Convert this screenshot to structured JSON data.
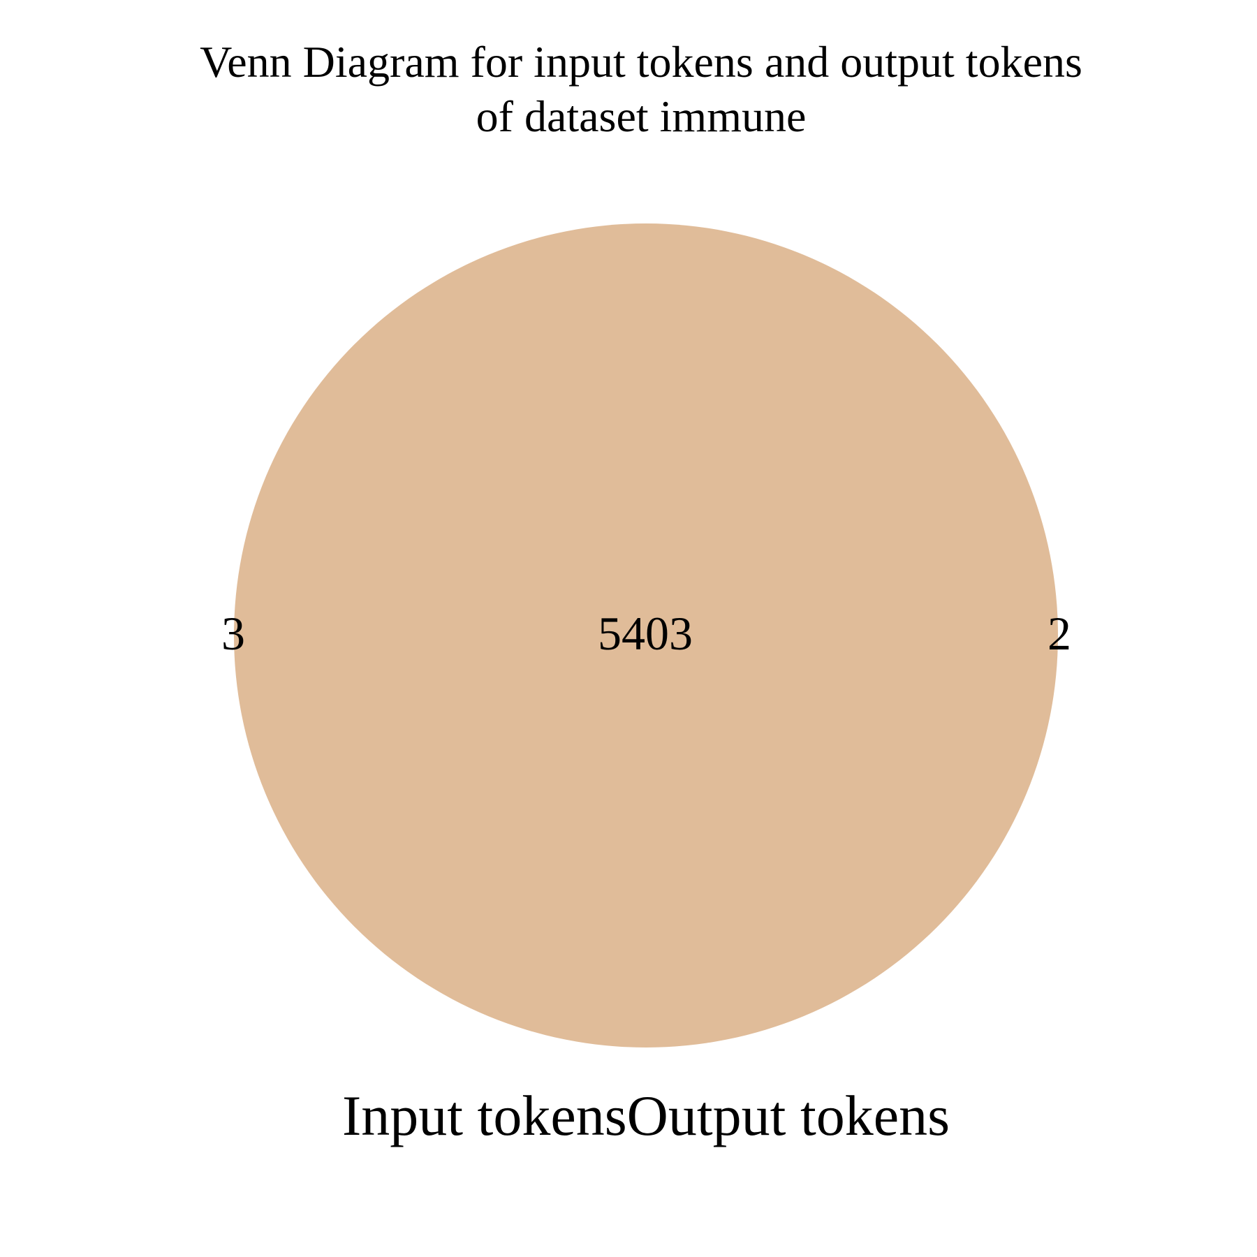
{
  "diagram": {
    "title_line_1": "Venn Diagram for input tokens and output tokens",
    "title_line_2": "of dataset immune",
    "fill_color": "#e0bc99",
    "sets": [
      {
        "label": "Input tokens",
        "only_count": "3"
      },
      {
        "label": "Output tokens",
        "only_count": "2"
      }
    ],
    "intersection_count": "5403"
  }
}
